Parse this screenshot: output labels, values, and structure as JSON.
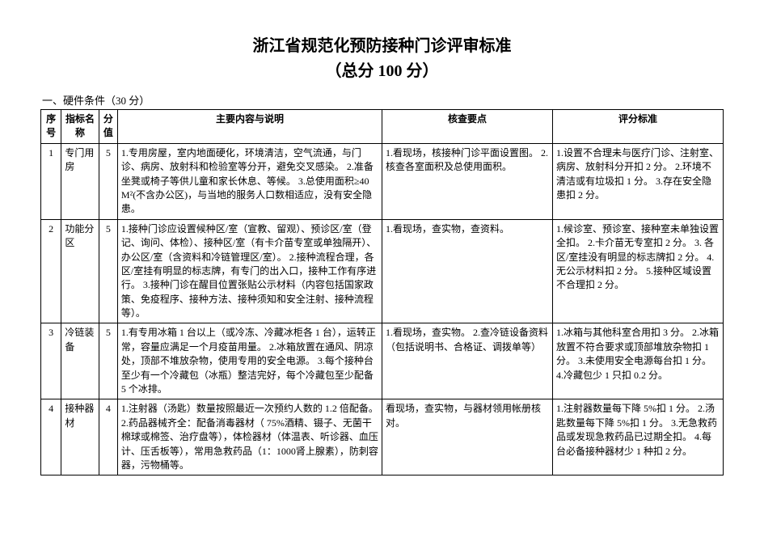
{
  "title": "浙江省规范化预防接种门诊评审标准",
  "subtitle": "（总分 100 分）",
  "section_heading": "一、硬件条件（30 分）",
  "headers": {
    "seq": "序号",
    "name": "指标名称",
    "score": "分值",
    "desc": "主要内容与说明",
    "check": "核查要点",
    "eval": "评分标准"
  },
  "rows": [
    {
      "seq": "1",
      "name": "专门用房",
      "score": "5",
      "desc": "1.专用房屋，室内地面硬化，环境清洁，空气流通，与门诊、病房、放射科和检验室等分开，避免交叉感染。\n2.准备坐凳或椅子等供儿童和家长休息、等候。\n3.总使用面积≥40 M²(不含办公区)，与当地的服务人口数相适应，没有安全隐患。",
      "check": "1.看现场，核接种门诊平面设置图。\n2.核查各室面积及总使用面积。",
      "eval": "1.设置不合理未与医疗门诊、注射室、病房、放射科分开扣 2 分。\n2.环境不清洁或有垃圾扣 1 分。\n3.存在安全隐患扣 2 分。"
    },
    {
      "seq": "2",
      "name": "功能分区",
      "score": "5",
      "desc": "1.接种门诊应设置候种区/室（宣教、留观）、预诊区/室（登记、询问、体检）、接种区/室（有卡介苗专室或单独隔开）、办公区/室（含资料和冷链管理区/室）。\n2.接种流程合理，各区/室挂有明显的标志牌，有专门的出入口，接种工作有序进行。\n3.接种门诊在醒目位置张贴公示材料（内容包括国家政策、免疫程序、接种方法、接种须知和安全注射、接种流程等）。",
      "check": "1.看现场，查实物，查资料。",
      "eval": "1.候诊室、预诊室、接种室未单独设置全扣。\n2.卡介苗无专室扣 2 分。\n3. 各区/室挂没有明显的标志牌扣 2 分。\n4.无公示材料扣 2 分。\n5.接种区域设置不合理扣 2 分。"
    },
    {
      "seq": "3",
      "name": "冷链装备",
      "score": "5",
      "desc": "1.有专用冰箱 1 台以上（或冷冻、冷藏冰柜各 1 台），运转正常，容量应满足一个月疫苗用量。\n2.冰箱放置在通风、阴凉处，顶部不堆放杂物，使用专用的安全电源。\n3.每个接种台至少有一个冷藏包（冰瓶）整洁完好，每个冷藏包至少配备 5 个冰排。",
      "check": "1.看现场，查实物。\n2.查冷链设备资料（包括说明书、合格证、调拨单等）",
      "eval": "1.冰箱与其他科室合用扣 3 分。\n2.冰箱放置不符合要求或顶部堆放杂物扣 1 分。\n3.未使用安全电源每台扣 1 分。\n4.冷藏包少 1 只扣 0.2 分。"
    },
    {
      "seq": "4",
      "name": "接种器材",
      "score": "4",
      "desc": "1.注射器（汤匙）数量按照最近一次预约人数的 1.2 倍配备。\n2.药品器械齐全：配备消毒器材（ 75%酒精、镊子、无菌干棉球或棉签、治疗盘等），体检器材（体温表、听诊器、血压计、压舌板等），常用急救药品（1：1000肾上腺素），防刺容器，污物桶等。",
      "check": "看现场，查实物，与器材领用帐册核对。",
      "eval": "1.注射器数量每下降 5%扣 1 分。\n2.汤匙数量每下降 5%扣 1 分。\n3.无急救药品或发现急救药品已过期全扣。\n4.每台必备接种器材少 1 种扣 2 分。"
    }
  ]
}
